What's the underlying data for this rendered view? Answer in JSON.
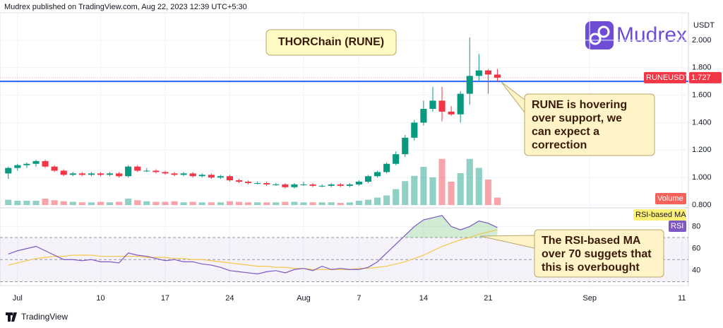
{
  "header": "Mudrex published on TradingView.com, Aug 22, 2023 12:39 UTC+5:30",
  "logo": "Mudrex",
  "footer": "TradingView",
  "chart_data": {
    "type": "candlestick",
    "title": "THORChain (RUNE)",
    "currency": "USDT",
    "symbol": "RUNEUSDT",
    "last_price": 1.727,
    "up_color": "#089981",
    "down_color": "#f23645",
    "x": [
      0,
      1,
      2,
      3,
      4,
      5,
      6,
      7,
      8,
      9,
      10,
      11,
      12,
      13,
      14,
      15,
      16,
      17,
      18,
      19,
      20,
      21,
      22,
      23,
      24,
      25,
      26,
      27,
      28,
      29,
      30,
      31,
      32,
      33,
      34,
      35,
      36,
      37,
      38,
      39,
      40,
      41,
      42,
      43,
      44,
      45,
      46,
      47,
      48,
      49,
      50,
      51,
      52,
      53
    ],
    "open": [
      1.03,
      1.07,
      1.09,
      1.1,
      1.12,
      1.08,
      1.05,
      1.02,
      1.03,
      1.02,
      1.03,
      1.02,
      1.03,
      1.01,
      1.08,
      1.05,
      1.05,
      1.04,
      1.03,
      1.02,
      1.03,
      1.01,
      1.02,
      1.0,
      1.01,
      0.98,
      0.97,
      0.96,
      0.96,
      0.95,
      0.95,
      0.93,
      0.95,
      0.95,
      0.94,
      0.94,
      0.95,
      0.94,
      0.95,
      0.97,
      1.01,
      1.04,
      1.1,
      1.17,
      1.29,
      1.4,
      1.5,
      1.56,
      1.48,
      1.46,
      1.61,
      1.74,
      1.78,
      1.75
    ],
    "high": [
      1.08,
      1.1,
      1.11,
      1.13,
      1.13,
      1.09,
      1.06,
      1.04,
      1.04,
      1.04,
      1.04,
      1.04,
      1.04,
      1.09,
      1.09,
      1.07,
      1.06,
      1.05,
      1.04,
      1.04,
      1.04,
      1.03,
      1.03,
      1.02,
      1.02,
      0.99,
      0.98,
      0.97,
      0.97,
      0.96,
      0.96,
      0.96,
      0.97,
      0.96,
      0.95,
      0.96,
      0.96,
      0.96,
      0.98,
      1.02,
      1.05,
      1.11,
      1.19,
      1.31,
      1.42,
      1.56,
      1.66,
      1.66,
      1.52,
      1.63,
      2.02,
      1.9,
      1.79,
      1.79
    ],
    "low": [
      0.99,
      1.05,
      1.07,
      1.08,
      1.07,
      1.04,
      1.01,
      1.01,
      1.01,
      1.01,
      1.01,
      1.01,
      1.0,
      1.0,
      1.04,
      1.04,
      1.03,
      1.02,
      1.01,
      1.01,
      1.0,
      1.0,
      0.99,
      0.99,
      0.97,
      0.96,
      0.95,
      0.95,
      0.94,
      0.94,
      0.92,
      0.92,
      0.94,
      0.93,
      0.93,
      0.93,
      0.93,
      0.93,
      0.94,
      0.96,
      1.0,
      1.03,
      1.09,
      1.15,
      1.27,
      1.38,
      1.48,
      1.41,
      1.45,
      1.4,
      1.53,
      1.7,
      1.61,
      1.7
    ],
    "close": [
      1.07,
      1.09,
      1.1,
      1.12,
      1.08,
      1.05,
      1.02,
      1.03,
      1.02,
      1.03,
      1.02,
      1.03,
      1.01,
      1.08,
      1.05,
      1.05,
      1.04,
      1.03,
      1.02,
      1.03,
      1.01,
      1.02,
      1.0,
      1.01,
      0.98,
      0.97,
      0.96,
      0.96,
      0.95,
      0.95,
      0.93,
      0.95,
      0.95,
      0.94,
      0.94,
      0.95,
      0.94,
      0.95,
      0.97,
      1.01,
      1.04,
      1.1,
      1.17,
      1.29,
      1.4,
      1.5,
      1.56,
      1.48,
      1.46,
      1.61,
      1.74,
      1.78,
      1.75,
      1.727
    ],
    "xlim": [
      -0.9,
      73.7
    ],
    "xticks": [
      {
        "value": 1,
        "label": "Jul"
      },
      10,
      17,
      24,
      {
        "value": 32,
        "label": "Aug"
      },
      {
        "value": 38,
        "label": "7"
      },
      {
        "value": 45,
        "label": "14"
      },
      {
        "value": 52,
        "label": "21"
      },
      {
        "value": 63,
        "label": "Sep"
      },
      {
        "value": 73,
        "label": "11"
      }
    ],
    "ylim": [
      0.79,
      2.2
    ],
    "yticks": [
      {
        "value": 0.8,
        "label": "0.800"
      },
      {
        "value": 1.0,
        "label": "1.000"
      },
      {
        "value": 1.2,
        "label": "1.200"
      },
      {
        "value": 1.4,
        "label": "1.400"
      },
      {
        "value": 1.6,
        "label": "1.600"
      },
      {
        "value": 1.8,
        "label": "1.800"
      },
      {
        "value": 2.0,
        "label": "2.000"
      }
    ],
    "support_level": 1.7,
    "support_color": "#2962ff",
    "annotations": [
      {
        "lines": [
          "RUNE is hovering",
          "over support, we",
          "can expect a",
          "correction"
        ]
      },
      {
        "lines": [
          "The RSI-based MA",
          "over 70 suggets that",
          "this is overbought"
        ]
      }
    ],
    "volume": {
      "name": "Volume",
      "lim": [
        0,
        100
      ],
      "values": [
        10,
        8,
        8,
        8,
        12,
        9,
        7,
        6,
        5,
        5,
        6,
        5,
        6,
        12,
        9,
        7,
        6,
        6,
        7,
        5,
        6,
        5,
        5,
        5,
        7,
        6,
        5,
        5,
        5,
        5,
        6,
        6,
        5,
        5,
        5,
        5,
        4,
        5,
        8,
        10,
        14,
        18,
        30,
        45,
        55,
        72,
        52,
        87,
        44,
        60,
        87,
        70,
        48,
        14
      ]
    },
    "rsi": {
      "name": "RSI",
      "color": "#7e57c2",
      "values": [
        55,
        58,
        60,
        62,
        58,
        54,
        50,
        50,
        49,
        50,
        48,
        48,
        47,
        56,
        54,
        53,
        51,
        49,
        50,
        48,
        48,
        46,
        45,
        43,
        40,
        39,
        38,
        37,
        39,
        40,
        38,
        41,
        42,
        40,
        44,
        41,
        42,
        41,
        41,
        43,
        48,
        56,
        64,
        72,
        80,
        86,
        88,
        90,
        80,
        77,
        80,
        85,
        83,
        79
      ],
      "ma_name": "RSI-based MA",
      "ma_color": "#f2c84b",
      "ma_values": [
        45,
        47,
        49,
        51,
        52,
        53,
        53,
        54,
        54,
        54,
        53,
        53,
        53,
        53,
        53,
        52,
        52,
        52,
        51,
        51,
        50,
        50,
        49,
        48,
        47,
        46,
        45,
        44,
        44,
        43,
        43,
        42,
        42,
        41,
        41,
        41,
        41,
        41,
        42,
        42,
        43,
        44,
        46,
        48,
        51,
        54,
        58,
        62,
        65,
        68,
        70,
        73,
        75,
        77
      ],
      "ylim": [
        29,
        95
      ],
      "yticks": [
        40,
        60,
        80
      ],
      "levels": [
        30,
        50,
        70
      ]
    }
  }
}
